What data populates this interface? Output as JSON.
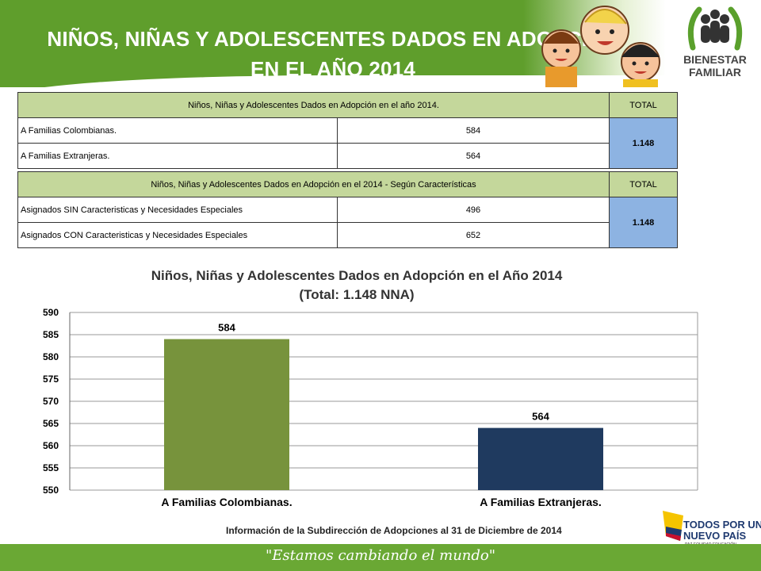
{
  "header": {
    "title_line1": "NIÑOS, NIÑAS Y ADOLESCENTES DADOS EN ADOPCIÓN",
    "title_line2": "EN EL AÑO 2014",
    "logo_line1": "BIENESTAR",
    "logo_line2": "FAMILIAR"
  },
  "table1": {
    "header": "Niños, Niñas y Adolescentes   Dados en Adopción en el año 2014.",
    "total_label": "TOTAL",
    "rows": [
      {
        "label": "A Familias Colombianas.",
        "value": "584"
      },
      {
        "label": "A Familias Extranjeras.",
        "value": "564"
      }
    ],
    "total": "1.148"
  },
  "table2": {
    "header": "Niños, Niñas y Adolescentes   Dados en Adopción en el 2014 - Según Características",
    "total_label": "TOTAL",
    "rows": [
      {
        "label": "Asignados  SIN Caracteristicas  y Necesidades  Especiales",
        "value": "496"
      },
      {
        "label": "Asignados  CON Caracteristicas  y Necesidades  Especiales",
        "value": "652"
      }
    ],
    "total": "1.148"
  },
  "chart_data": {
    "type": "bar",
    "title": "Niños, Niñas y Adolescentes  Dados en Adopción en el Año 2014",
    "subtitle": "(Total:  1.148 NNA)",
    "categories": [
      "A Familias Colombianas.",
      "A Familias Extranjeras."
    ],
    "values": [
      584,
      564
    ],
    "data_labels": [
      "584",
      "564"
    ],
    "colors": [
      "#77933c",
      "#1f3a5f"
    ],
    "ylim": [
      550,
      590
    ],
    "yticks": [
      550,
      555,
      560,
      565,
      570,
      575,
      580,
      585,
      590
    ],
    "grid": true
  },
  "footer": {
    "note": "Información de la Subdirección de Adopciones al  31 de Diciembre de  2014",
    "slogan": "\"Estamos cambiando el mundo\"",
    "gov_line1": "TODOS POR UN",
    "gov_line2": "NUEVO PAÍS",
    "gov_small": "PAZ  EQUIDAD  EDUCACIÓN"
  }
}
